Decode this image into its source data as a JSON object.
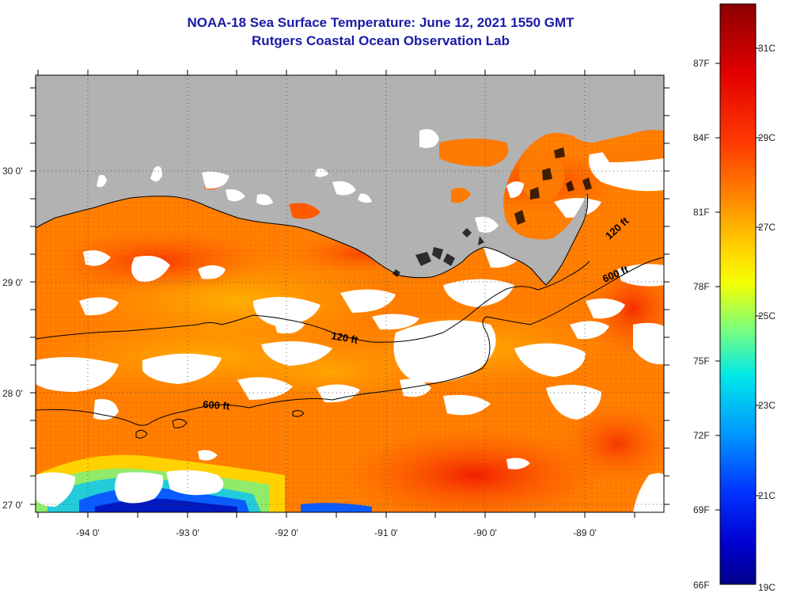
{
  "title": {
    "line1": "NOAA-18 Sea Surface Temperature:  June 12, 2021 1550 GMT",
    "line2": "Rutgers Coastal Ocean Observation Lab"
  },
  "colors": {
    "title": "#1a1aa6",
    "land": "#b2b2b2",
    "cloud": "#ffffff",
    "contour": "#000000"
  },
  "map": {
    "lat_labels": [
      "30 0'",
      "29 0'",
      "28 0'",
      "27 0'"
    ],
    "lon_labels": [
      "-94 0'",
      "-93 0'",
      "-92 0'",
      "-91 0'",
      "-90 0'",
      "-89 0'"
    ],
    "contour_labels": [
      "120 ft",
      "600 ft",
      "600 ft",
      "120 ft"
    ]
  },
  "colorbar": {
    "fahrenheit_labels": [
      "87F",
      "84F",
      "81F",
      "78F",
      "75F",
      "72F",
      "69F",
      "66F"
    ],
    "celsius_labels": [
      "31C",
      "29C",
      "27C",
      "25C",
      "23C",
      "21C",
      "19C"
    ],
    "range_c": [
      19,
      32.2
    ]
  }
}
